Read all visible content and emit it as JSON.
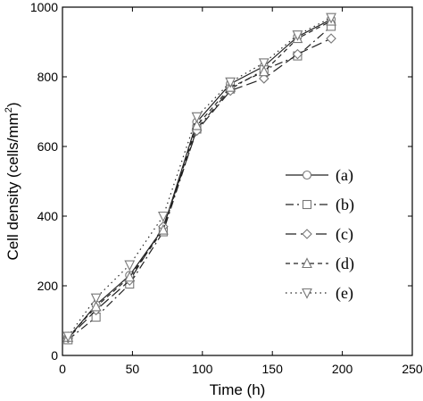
{
  "chart_data": {
    "type": "line",
    "title": "",
    "xlabel": "Time (h)",
    "ylabel": "Cell density (cells/mm",
    "ylabel_sup": "2",
    "ylabel_close": ")",
    "xlim": [
      0,
      250
    ],
    "ylim": [
      0,
      1000
    ],
    "xticks": [
      0,
      50,
      100,
      150,
      200,
      250
    ],
    "yticks": [
      0,
      200,
      400,
      600,
      800,
      1000
    ],
    "grid": false,
    "legend_position": "right",
    "series": [
      {
        "name": "(a)",
        "marker": "circle",
        "dash": "",
        "x": [
          4,
          24,
          48,
          72,
          96,
          120,
          144,
          168,
          192
        ],
        "y": [
          50,
          145,
          230,
          365,
          670,
          780,
          830,
          915,
          965
        ]
      },
      {
        "name": "(b)",
        "marker": "square",
        "dash": "9,4,2,4",
        "x": [
          4,
          24,
          48,
          72,
          96,
          120,
          144,
          168,
          192
        ],
        "y": [
          45,
          110,
          205,
          355,
          650,
          765,
          820,
          860,
          945
        ]
      },
      {
        "name": "(c)",
        "marker": "diamond",
        "dash": "12,5",
        "x": [
          4,
          24,
          48,
          72,
          96,
          120,
          144,
          168,
          192
        ],
        "y": [
          50,
          130,
          215,
          370,
          645,
          760,
          795,
          865,
          910
        ]
      },
      {
        "name": "(d)",
        "marker": "triangle-up",
        "dash": "5,4",
        "x": [
          4,
          24,
          48,
          72,
          96,
          120,
          144,
          168,
          192
        ],
        "y": [
          52,
          140,
          225,
          360,
          660,
          770,
          815,
          910,
          960
        ]
      },
      {
        "name": "(e)",
        "marker": "triangle-down",
        "dash": "1.5,4",
        "x": [
          4,
          24,
          48,
          72,
          96,
          120,
          144,
          168,
          192
        ],
        "y": [
          55,
          165,
          260,
          400,
          685,
          785,
          840,
          920,
          970
        ]
      }
    ]
  }
}
